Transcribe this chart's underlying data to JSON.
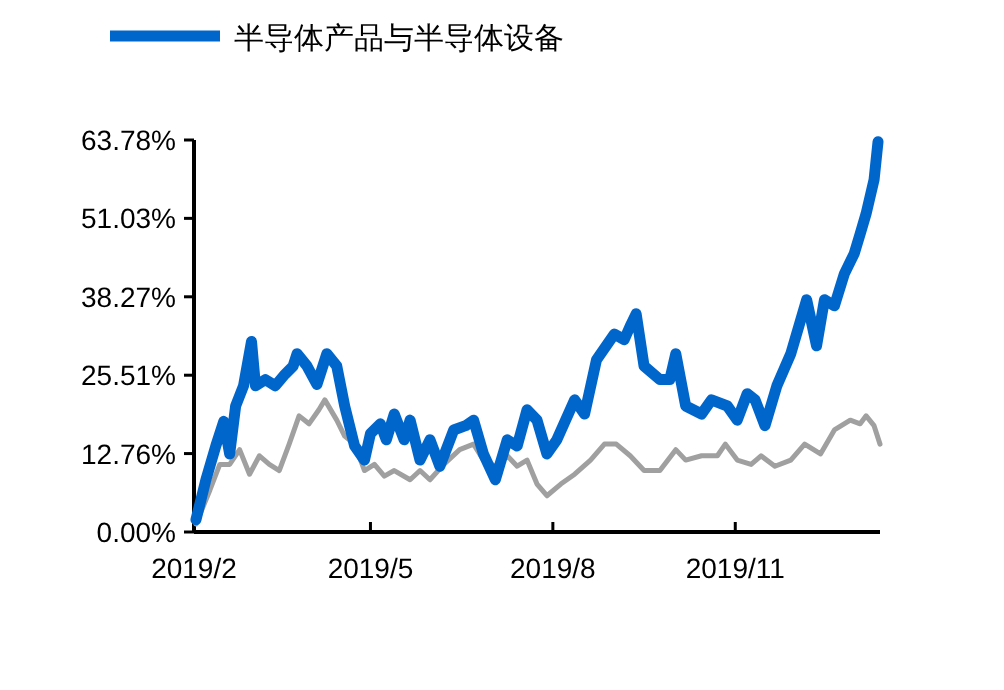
{
  "chart_data": {
    "type": "line",
    "legend": "top",
    "grid": false,
    "line_style": "solid",
    "marker": "none",
    "xlim": [
      "2019-02-01",
      "2020-01-13"
    ],
    "xticks": [
      {
        "value": "2019-02-01",
        "label": "2019/2"
      },
      {
        "value": "2019-05-01",
        "label": "2019/5"
      },
      {
        "value": "2019-08-01",
        "label": "2019/8"
      },
      {
        "value": "2019-11-01",
        "label": "2019/11"
      }
    ],
    "ylim": [
      0,
      63.78
    ],
    "yticks": [
      {
        "value": 0,
        "label": "0.00%"
      },
      {
        "value": 12.76,
        "label": "12.76%"
      },
      {
        "value": 25.51,
        "label": "25.51%"
      },
      {
        "value": 38.27,
        "label": "38.27%"
      },
      {
        "value": 51.03,
        "label": "51.03%"
      },
      {
        "value": 63.78,
        "label": "63.78%"
      }
    ],
    "series": [
      {
        "name": "半导体产品与半导体设备",
        "color": "#0066cc",
        "x": [
          "2019-02-02",
          "2019-02-07",
          "2019-02-12",
          "2019-02-16",
          "2019-02-19",
          "2019-02-22",
          "2019-02-26",
          "2019-03-02",
          "2019-03-04",
          "2019-03-09",
          "2019-03-14",
          "2019-03-19",
          "2019-03-23",
          "2019-03-25",
          "2019-03-30",
          "2019-04-04",
          "2019-04-09",
          "2019-04-14",
          "2019-04-18",
          "2019-04-23",
          "2019-04-28",
          "2019-05-01",
          "2019-05-06",
          "2019-05-09",
          "2019-05-13",
          "2019-05-18",
          "2019-05-21",
          "2019-05-26",
          "2019-05-31",
          "2019-06-05",
          "2019-06-12",
          "2019-06-18",
          "2019-06-22",
          "2019-06-27",
          "2019-07-03",
          "2019-07-09",
          "2019-07-14",
          "2019-07-19",
          "2019-07-24",
          "2019-07-29",
          "2019-08-03",
          "2019-08-12",
          "2019-08-17",
          "2019-08-23",
          "2019-09-01",
          "2019-09-06",
          "2019-09-09",
          "2019-09-12",
          "2019-09-16",
          "2019-09-24",
          "2019-09-29",
          "2019-10-02",
          "2019-10-07",
          "2019-10-15",
          "2019-10-20",
          "2019-10-28",
          "2019-11-02",
          "2019-11-07",
          "2019-11-11",
          "2019-11-16",
          "2019-11-22",
          "2019-11-29",
          "2019-12-07",
          "2019-12-12",
          "2019-12-16",
          "2019-12-21",
          "2019-12-26",
          "2019-12-31",
          "2020-01-03",
          "2020-01-06",
          "2020-01-10",
          "2020-01-12"
        ],
        "values": [
          2.0,
          8.5,
          14,
          18,
          12.7,
          20.5,
          23.8,
          31,
          23.8,
          24.8,
          23.8,
          25.7,
          27,
          29,
          27,
          24,
          29,
          27,
          20.5,
          14,
          11.7,
          16,
          17.6,
          15,
          19.2,
          15,
          18.2,
          11.7,
          15,
          10.7,
          16.6,
          17.3,
          18.2,
          12.7,
          8.5,
          15,
          14,
          19.9,
          18.2,
          12.7,
          15,
          21.5,
          19.2,
          28,
          32.2,
          31.3,
          33.5,
          35.5,
          27,
          24.8,
          24.8,
          29,
          20.5,
          19.2,
          21.5,
          20.5,
          18.2,
          22.5,
          21.5,
          17.3,
          23.8,
          29,
          37.8,
          30.3,
          37.8,
          36.8,
          42,
          45.3,
          48.5,
          51.8,
          57.3,
          63.5
        ]
      },
      {
        "color": "#a0a0a0",
        "x": [
          "2019-02-02",
          "2019-02-09",
          "2019-02-14",
          "2019-02-19",
          "2019-02-24",
          "2019-03-01",
          "2019-03-06",
          "2019-03-11",
          "2019-03-16",
          "2019-03-21",
          "2019-03-26",
          "2019-03-31",
          "2019-04-05",
          "2019-04-08",
          "2019-04-14",
          "2019-04-18",
          "2019-04-23",
          "2019-04-28",
          "2019-05-03",
          "2019-05-08",
          "2019-05-13",
          "2019-05-21",
          "2019-05-26",
          "2019-05-31",
          "2019-06-07",
          "2019-06-15",
          "2019-06-22",
          "2019-06-27",
          "2019-07-03",
          "2019-07-09",
          "2019-07-14",
          "2019-07-19",
          "2019-07-24",
          "2019-07-29",
          "2019-08-05",
          "2019-08-12",
          "2019-08-20",
          "2019-08-27",
          "2019-09-02",
          "2019-09-09",
          "2019-09-16",
          "2019-09-24",
          "2019-10-02",
          "2019-10-07",
          "2019-10-15",
          "2019-10-23",
          "2019-10-27",
          "2019-11-02",
          "2019-11-09",
          "2019-11-14",
          "2019-11-21",
          "2019-11-29",
          "2019-12-06",
          "2019-12-14",
          "2019-12-21",
          "2019-12-29",
          "2020-01-03",
          "2020-01-06",
          "2020-01-10",
          "2020-01-13"
        ],
        "values": [
          1.3,
          6.8,
          11,
          11,
          13.4,
          9.4,
          12.4,
          11,
          10,
          14.3,
          18.9,
          17.6,
          19.9,
          21.5,
          18.2,
          15.6,
          14.3,
          10,
          11,
          9.1,
          10,
          8.5,
          10,
          8.5,
          11,
          13.4,
          14.3,
          11.7,
          10.7,
          12.4,
          10.7,
          11.7,
          7.8,
          5.9,
          7.8,
          9.4,
          11.7,
          14.3,
          14.3,
          12.4,
          10,
          10,
          13.4,
          11.7,
          12.4,
          12.4,
          14.3,
          11.7,
          11,
          12.4,
          10.7,
          11.7,
          14.3,
          12.7,
          16.6,
          18.2,
          17.6,
          18.9,
          17.3,
          14.3
        ]
      }
    ]
  }
}
